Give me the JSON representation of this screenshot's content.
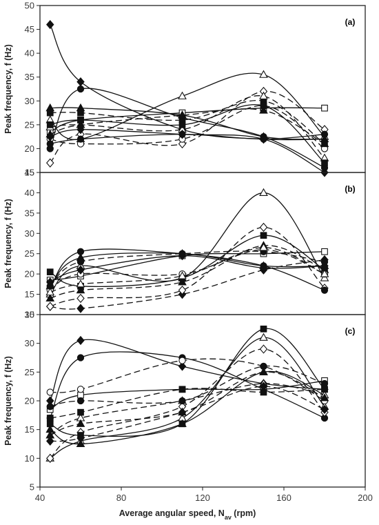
{
  "chart_data": {
    "type": "line",
    "xlabel": "Average angular speed, N",
    "xlabel_sub": "av",
    "xlabel_unit": " (rpm)",
    "ylabel": "Peak frequency, f (Hz)",
    "x_ticks": [
      "40",
      "80",
      "120",
      "160",
      "200"
    ],
    "xlim": [
      40,
      200
    ],
    "grid": false,
    "panels": [
      {
        "label": "(a)",
        "ylim": [
          15,
          50
        ],
        "y_ticks": [
          "15",
          "20",
          "25",
          "30",
          "35",
          "40",
          "45",
          "50"
        ],
        "series": [
          {
            "x": [
              45,
              60,
              110,
              150,
              180
            ],
            "y": [
              46.0,
              34.0,
              24.0,
              22.0,
              22.0
            ],
            "marker": "diamond",
            "fill": "filled",
            "dash": false
          },
          {
            "x": [
              45,
              60,
              110,
              150,
              180
            ],
            "y": [
              20.0,
              32.5,
              26.5,
              22.5,
              16.0
            ],
            "marker": "circle",
            "fill": "filled",
            "dash": false
          },
          {
            "x": [
              45,
              60,
              110,
              150,
              180
            ],
            "y": [
              26.0,
              22.0,
              31.0,
              35.5,
              22.5
            ],
            "marker": "triangle",
            "fill": "open",
            "dash": false
          },
          {
            "x": [
              45,
              60,
              110,
              150,
              180
            ],
            "y": [
              17.0,
              23.0,
              21.0,
              32.0,
              24.0
            ],
            "marker": "diamond",
            "fill": "open",
            "dash": true
          },
          {
            "x": [
              45,
              60,
              110,
              150,
              180
            ],
            "y": [
              23.5,
              26.0,
              27.5,
              28.5,
              28.5
            ],
            "marker": "square",
            "fill": "open",
            "dash": false
          },
          {
            "x": [
              45,
              60,
              110,
              150,
              180
            ],
            "y": [
              28.5,
              28.5,
              27.0,
              22.5,
              22.0
            ],
            "marker": "triangle",
            "fill": "filled",
            "dash": false
          },
          {
            "x": [
              45,
              60,
              110,
              150,
              180
            ],
            "y": [
              27.5,
              27.5,
              26.0,
              30.0,
              21.0
            ],
            "marker": "square",
            "fill": "filled",
            "dash": true
          },
          {
            "x": [
              45,
              60,
              110,
              150,
              180
            ],
            "y": [
              22.0,
              21.0,
              22.0,
              29.0,
              20.0
            ],
            "marker": "circle",
            "fill": "open",
            "dash": true
          },
          {
            "x": [
              45,
              60,
              110,
              150,
              180
            ],
            "y": [
              24.5,
              25.0,
              24.0,
              31.0,
              18.0
            ],
            "marker": "triangle",
            "fill": "open",
            "dash": true
          },
          {
            "x": [
              45,
              60,
              110,
              150,
              180
            ],
            "y": [
              22.5,
              24.0,
              23.0,
              22.0,
              15.0
            ],
            "marker": "diamond",
            "fill": "filled",
            "dash": false
          },
          {
            "x": [
              45,
              60,
              110,
              150,
              180
            ],
            "y": [
              21.0,
              22.0,
              23.0,
              22.0,
              23.0
            ],
            "marker": "circle",
            "fill": "filled",
            "dash": false
          },
          {
            "x": [
              45,
              60,
              110,
              150,
              180
            ],
            "y": [
              25.0,
              26.0,
              25.0,
              29.0,
              17.0
            ],
            "marker": "square",
            "fill": "filled",
            "dash": false
          },
          {
            "x": [
              45,
              60,
              110,
              150,
              180
            ],
            "y": [
              23.0,
              25.0,
              27.0,
              28.0,
              21.0
            ],
            "marker": "triangle",
            "fill": "filled",
            "dash": true
          }
        ]
      },
      {
        "label": "(b)",
        "ylim": [
          10,
          45
        ],
        "y_ticks": [
          "10",
          "15",
          "20",
          "25",
          "30",
          "35",
          "40",
          "45"
        ],
        "series": [
          {
            "x": [
              45,
              60,
              110,
              150,
              180
            ],
            "y": [
              12.0,
              11.5,
              15.0,
              21.0,
              23.5
            ],
            "marker": "diamond",
            "fill": "filled",
            "dash": true
          },
          {
            "x": [
              45,
              60,
              110,
              150,
              180
            ],
            "y": [
              12.0,
              14.0,
              16.0,
              31.5,
              16.5
            ],
            "marker": "diamond",
            "fill": "open",
            "dash": true
          },
          {
            "x": [
              45,
              60,
              110,
              150,
              180
            ],
            "y": [
              16.5,
              25.5,
              25.0,
              22.0,
              16.0
            ],
            "marker": "circle",
            "fill": "filled",
            "dash": false
          },
          {
            "x": [
              45,
              60,
              110,
              150,
              180
            ],
            "y": [
              15.0,
              22.0,
              19.0,
              40.0,
              19.0
            ],
            "marker": "triangle",
            "fill": "open",
            "dash": false
          },
          {
            "x": [
              45,
              60,
              110,
              150,
              180
            ],
            "y": [
              20.5,
              17.0,
              19.0,
              29.5,
              21.0
            ],
            "marker": "square",
            "fill": "filled",
            "dash": false
          },
          {
            "x": [
              45,
              60,
              110,
              150,
              180
            ],
            "y": [
              18.5,
              19.5,
              24.5,
              25.0,
              25.5
            ],
            "marker": "square",
            "fill": "open",
            "dash": false
          },
          {
            "x": [
              45,
              60,
              110,
              150,
              180
            ],
            "y": [
              17.0,
              24.0,
              25.0,
              22.0,
              22.0
            ],
            "marker": "triangle",
            "fill": "filled",
            "dash": false
          },
          {
            "x": [
              45,
              60,
              110,
              150,
              180
            ],
            "y": [
              14.0,
              16.0,
              18.0,
              27.0,
              21.0
            ],
            "marker": "triangle",
            "fill": "filled",
            "dash": true
          },
          {
            "x": [
              45,
              60,
              110,
              150,
              180
            ],
            "y": [
              16.0,
              20.0,
              20.0,
              26.0,
              20.0
            ],
            "marker": "circle",
            "fill": "open",
            "dash": true
          },
          {
            "x": [
              45,
              60,
              110,
              150,
              180
            ],
            "y": [
              18.0,
              21.0,
              24.5,
              21.5,
              22.0
            ],
            "marker": "diamond",
            "fill": "filled",
            "dash": false
          },
          {
            "x": [
              45,
              60,
              110,
              150,
              180
            ],
            "y": [
              17.0,
              23.0,
              25.0,
              25.5,
              23.0
            ],
            "marker": "circle",
            "fill": "filled",
            "dash": true
          },
          {
            "x": [
              45,
              60,
              110,
              150,
              180
            ],
            "y": [
              15.5,
              17.5,
              19.5,
              26.5,
              20.0
            ],
            "marker": "triangle",
            "fill": "open",
            "dash": true
          }
        ]
      },
      {
        "label": "(c)",
        "ylim": [
          5,
          35
        ],
        "y_ticks": [
          "5",
          "10",
          "15",
          "20",
          "25",
          "30",
          "35"
        ],
        "series": [
          {
            "x": [
              45,
              60,
              110,
              150,
              180
            ],
            "y": [
              20.0,
              30.5,
              26.0,
              23.0,
              22.0
            ],
            "marker": "diamond",
            "fill": "filled",
            "dash": false
          },
          {
            "x": [
              45,
              60,
              110,
              150,
              180
            ],
            "y": [
              17.0,
              27.5,
              27.5,
              22.0,
              17.0
            ],
            "marker": "circle",
            "fill": "filled",
            "dash": false
          },
          {
            "x": [
              45,
              60,
              110,
              150,
              180
            ],
            "y": [
              10.0,
              13.0,
              17.0,
              31.0,
              19.0
            ],
            "marker": "triangle",
            "fill": "open",
            "dash": false
          },
          {
            "x": [
              45,
              60,
              110,
              150,
              180
            ],
            "y": [
              10.0,
              14.5,
              19.0,
              29.0,
              18.0
            ],
            "marker": "diamond",
            "fill": "open",
            "dash": true
          },
          {
            "x": [
              45,
              60,
              110,
              150,
              180
            ],
            "y": [
              16.0,
              14.0,
              16.0,
              32.5,
              22.0
            ],
            "marker": "square",
            "fill": "filled",
            "dash": false
          },
          {
            "x": [
              45,
              60,
              110,
              150,
              180
            ],
            "y": [
              18.5,
              21.0,
              22.0,
              22.0,
              23.5
            ],
            "marker": "square",
            "fill": "open",
            "dash": false
          },
          {
            "x": [
              45,
              60,
              110,
              150,
              180
            ],
            "y": [
              15.0,
              12.5,
              16.0,
              25.0,
              21.0
            ],
            "marker": "triangle",
            "fill": "filled",
            "dash": false
          },
          {
            "x": [
              45,
              60,
              110,
              150,
              180
            ],
            "y": [
              21.5,
              22.0,
              27.0,
              26.0,
              20.0
            ],
            "marker": "circle",
            "fill": "open",
            "dash": true
          },
          {
            "x": [
              45,
              60,
              110,
              150,
              180
            ],
            "y": [
              14.0,
              17.0,
              20.0,
              23.0,
              21.0
            ],
            "marker": "triangle",
            "fill": "open",
            "dash": true
          },
          {
            "x": [
              45,
              60,
              110,
              150,
              180
            ],
            "y": [
              13.0,
              13.5,
              18.0,
              22.5,
              18.5
            ],
            "marker": "diamond",
            "fill": "filled",
            "dash": true
          },
          {
            "x": [
              45,
              60,
              110,
              150,
              180
            ],
            "y": [
              19.0,
              20.0,
              20.0,
              26.0,
              23.0
            ],
            "marker": "circle",
            "fill": "filled",
            "dash": true
          },
          {
            "x": [
              45,
              60,
              110,
              150,
              180
            ],
            "y": [
              17.0,
              18.0,
              22.0,
              21.5,
              22.0
            ],
            "marker": "square",
            "fill": "filled",
            "dash": true
          },
          {
            "x": [
              45,
              60,
              110,
              150,
              180
            ],
            "y": [
              14.0,
              16.0,
              18.0,
              25.0,
              20.5
            ],
            "marker": "triangle",
            "fill": "filled",
            "dash": true
          }
        ]
      }
    ]
  }
}
